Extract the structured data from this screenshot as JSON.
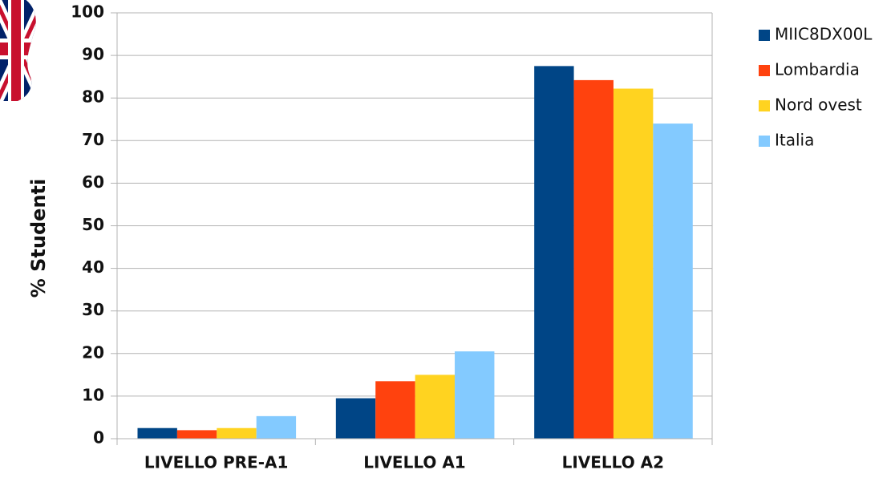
{
  "chart_data": {
    "type": "bar",
    "title": "",
    "xlabel": "",
    "ylabel": "% Studenti",
    "ylim": [
      0,
      100
    ],
    "yticks": [
      0,
      10,
      20,
      30,
      40,
      50,
      60,
      70,
      80,
      90,
      100
    ],
    "grid": "horizontal",
    "legend_position": "right",
    "categories": [
      "LIVELLO PRE-A1",
      "LIVELLO A1",
      "LIVELLO A2"
    ],
    "series": [
      {
        "name": "MIIC8DX00L",
        "color": "#004586",
        "values": [
          2.5,
          9.5,
          87.5
        ]
      },
      {
        "name": "Lombardia",
        "color": "#ff420e",
        "values": [
          2.0,
          13.5,
          84.2
        ]
      },
      {
        "name": "Nord ovest",
        "color": "#ffd320",
        "values": [
          2.5,
          15.0,
          82.2
        ]
      },
      {
        "name": "Italia",
        "color": "#83caff",
        "values": [
          5.3,
          20.5,
          74.0
        ]
      }
    ]
  },
  "decoration": {
    "flag_icon": "union-jack-flag-icon"
  }
}
